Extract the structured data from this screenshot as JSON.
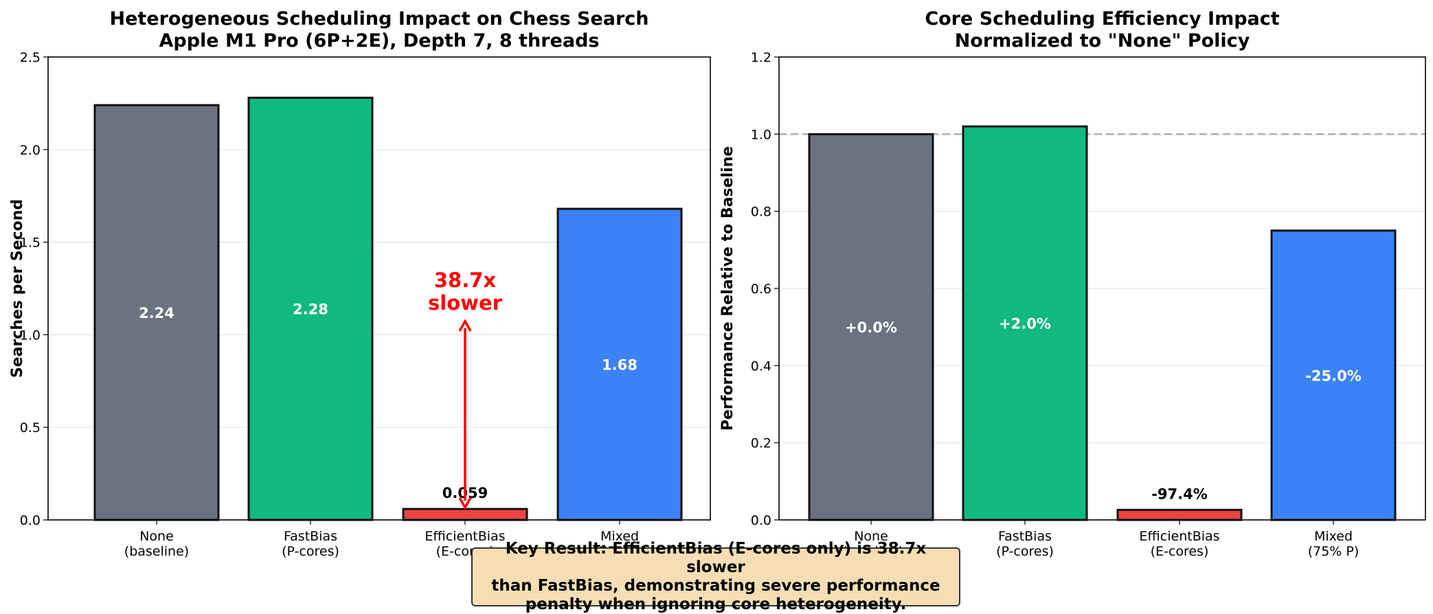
{
  "chart_data": [
    {
      "type": "bar",
      "title": "Heterogeneous Scheduling Impact on Chess Search\nApple M1 Pro (6P+2E), Depth 7, 8 threads",
      "xlabel": "",
      "ylabel": "Searches per Second",
      "ylim": [
        0,
        2.5
      ],
      "yticks": [
        "0.0",
        "0.5",
        "1.0",
        "1.5",
        "2.0",
        "2.5"
      ],
      "grid": true,
      "categories": [
        "None\n(baseline)",
        "FastBias\n(P-cores)",
        "EfficientBias\n(E-cores)",
        "Mixed\n(75% P)"
      ],
      "values": [
        2.24,
        2.28,
        0.059,
        1.68
      ],
      "data_labels": [
        "2.24",
        "2.28",
        "0.059",
        "1.68"
      ],
      "colors": [
        "#6b7280",
        "#10b981",
        "#ef4444",
        "#3b82f6"
      ],
      "annotation": {
        "text": "38.7x\nslower",
        "color": "#ff0000",
        "arrow_from": 1.08,
        "arrow_to": 0.06
      }
    },
    {
      "type": "bar",
      "title": "Core Scheduling Efficiency Impact\nNormalized to \"None\" Policy",
      "xlabel": "",
      "ylabel": "Performance Relative to Baseline",
      "ylim": [
        0,
        1.2
      ],
      "yticks": [
        "0.0",
        "0.2",
        "0.4",
        "0.6",
        "0.8",
        "1.0",
        "1.2"
      ],
      "grid": true,
      "reference_line": 1.0,
      "categories": [
        "None\n(baseline)",
        "FastBias\n(P-cores)",
        "EfficientBias\n(E-cores)",
        "Mixed\n(75% P)"
      ],
      "values": [
        1.0,
        1.02,
        0.026,
        0.75
      ],
      "data_labels": [
        "+0.0%",
        "+2.0%",
        "-97.4%",
        "-25.0%"
      ],
      "colors": [
        "#6b7280",
        "#10b981",
        "#ef4444",
        "#3b82f6"
      ]
    }
  ],
  "callout": {
    "text": "Key Result: EfficientBias (E-cores only) is 38.7x slower\nthan FastBias, demonstrating severe performance\npenalty when ignoring core heterogeneity."
  }
}
